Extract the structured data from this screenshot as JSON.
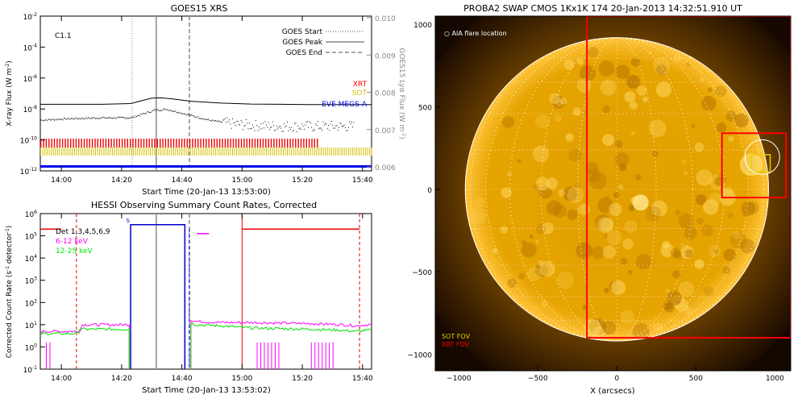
{
  "chart_data": [
    {
      "type": "line",
      "title": "GOES15 XRS",
      "xlabel": "Start Time (20-Jan-13 13:53:00)",
      "ylabel": "X-ray Flux (W m",
      "ylabel_sup": "-2",
      "ylabel_close": ")",
      "y2label": "GOES15 Lyα Flux (W m",
      "y2label_sup": "-2",
      "y2label_close": ")",
      "class_label": "C1.1",
      "x_ticks": [
        "14:00",
        "14:20",
        "14:40",
        "15:00",
        "15:20",
        "15:40"
      ],
      "y_ticks": [
        {
          "base": "10",
          "exp": "-2"
        },
        {
          "base": "10",
          "exp": "-4"
        },
        {
          "base": "10",
          "exp": "-6"
        },
        {
          "base": "10",
          "exp": "-8"
        },
        {
          "base": "10",
          "exp": "-10"
        },
        {
          "base": "10",
          "exp": "-12"
        }
      ],
      "y2_ticks": [
        "0.010",
        "0.009",
        "0.008",
        "0.007",
        "0.006"
      ],
      "legend": [
        {
          "name": "GOES Start",
          "style": "dotted"
        },
        {
          "name": "GOES Peak",
          "style": "solid"
        },
        {
          "name": "GOES End",
          "style": "dashed"
        }
      ],
      "instrument_labels": [
        {
          "name": "XRT",
          "color": "#ff0000"
        },
        {
          "name": "SOT",
          "color": "#d4c000"
        },
        {
          "name": "EVE MEGS-A",
          "color": "#0000ee"
        }
      ],
      "markers_min": {
        "start": 30.5,
        "peak": 38.5,
        "end": 49.5
      },
      "series": [
        {
          "label": "long",
          "x": [
            0,
            10,
            20,
            30,
            34,
            37,
            40,
            44,
            50,
            60,
            70,
            80,
            90,
            100,
            110
          ],
          "y": [
            -7.7,
            -7.7,
            -7.7,
            -7.65,
            -7.45,
            -7.3,
            -7.28,
            -7.35,
            -7.5,
            -7.62,
            -7.68,
            -7.7,
            -7.72,
            -7.72,
            -7.72
          ]
        },
        {
          "label": "short",
          "x": [
            0,
            10,
            20,
            30,
            34,
            38,
            42,
            48,
            56,
            64,
            72,
            80,
            88,
            96,
            104
          ],
          "y": [
            -8.7,
            -8.6,
            -8.55,
            -8.55,
            -8.3,
            -8.05,
            -8.0,
            -8.3,
            -8.7,
            -8.95,
            -9.05,
            -9.1,
            -9.1,
            -9.1,
            -9.1
          ]
        }
      ],
      "instrument_coverage_min": {
        "XRT": [
          0,
          92
        ],
        "SOT": [
          0,
          110
        ],
        "EVE MEGS-A": [
          0,
          110
        ]
      },
      "xlim_min": [
        0,
        110
      ]
    },
    {
      "type": "line",
      "title": "HESSI Observing Summary Count Rates, Corrected",
      "xlabel": "Start Time (20-Jan-13 13:53:02)",
      "ylabel": "Corrected Count Rate (s",
      "ylabel_sup": "-1",
      "ylabel_mid": " detector",
      "ylabel_sup2": "-1",
      "ylabel_close": ")",
      "x_ticks": [
        "14:00",
        "14:20",
        "14:40",
        "15:00",
        "15:20",
        "15:40"
      ],
      "y_ticks": [
        {
          "base": "10",
          "exp": "6"
        },
        {
          "base": "10",
          "exp": "5"
        },
        {
          "base": "10",
          "exp": "4"
        },
        {
          "base": "10",
          "exp": "3"
        },
        {
          "base": "10",
          "exp": "2"
        },
        {
          "base": "10",
          "exp": "1"
        },
        {
          "base": "10",
          "exp": "0"
        },
        {
          "base": "10",
          "exp": "-1"
        }
      ],
      "legend": [
        {
          "name": "Det 1,3,4,5,6,9",
          "color": "#000000"
        },
        {
          "name": "6-12 keV",
          "color": "#ff00ff"
        },
        {
          "name": "12-25 keV",
          "color": "#00ee00"
        }
      ],
      "s_marker": "S",
      "series": [
        {
          "name": "6-12 keV",
          "x": [
            0,
            13,
            14,
            30,
            50,
            52,
            60,
            70,
            90,
            100,
            105,
            108
          ],
          "y": [
            0.7,
            0.7,
            1.0,
            1.0,
            1.2,
            1.15,
            1.1,
            1.1,
            1.05,
            1.0,
            0.95,
            1.0
          ]
        },
        {
          "name": "12-25 keV",
          "x": [
            0,
            12,
            13,
            30,
            50,
            52,
            60,
            70,
            90,
            100,
            105,
            108
          ],
          "y": [
            0.6,
            0.6,
            0.8,
            0.8,
            1.05,
            1.0,
            0.95,
            0.85,
            0.8,
            0.75,
            0.7,
            0.75
          ]
        }
      ],
      "xlim_min": [
        0,
        110
      ]
    },
    {
      "type": "heatmap",
      "title": "PROBA2 SWAP CMOS 1Kx1K 174 20-Jan-2013 14:32:51.910 UT",
      "xlabel": "X (arcsecs)",
      "ylabel": "",
      "x_ticks": [
        "−1000",
        "−500",
        "0",
        "500",
        "1000"
      ],
      "y_ticks": [
        "1000",
        "500",
        "0",
        "−500",
        "−1000"
      ],
      "xlim": [
        -1150,
        1100
      ],
      "ylim": [
        -1100,
        1050
      ],
      "annotation": "○ AIA flare location",
      "fov_labels": [
        {
          "name": "SOT FOV",
          "color": "#e6d000"
        },
        {
          "name": "XRT FOV",
          "color": "#ff0000"
        }
      ],
      "fov_boxes": [
        {
          "name": "XRT FOV",
          "color": "#ff0000",
          "x": [
            -190,
            1100
          ],
          "y": [
            -900,
            1050
          ]
        },
        {
          "name": "XRT FOV",
          "color": "#ff0000",
          "x": [
            665,
            1070
          ],
          "y": [
            -50,
            340
          ]
        },
        {
          "name": "SOT FOV",
          "color": "#e6d000",
          "x": [
            850,
            970
          ],
          "y": [
            105,
            210
          ]
        }
      ],
      "flare_location": {
        "x": 920,
        "y": 195,
        "r": 110
      },
      "colors": {
        "disk": "#e8a600",
        "corona": "#7a4a00",
        "space": "#140800",
        "limb": "#ffffff"
      }
    }
  ]
}
